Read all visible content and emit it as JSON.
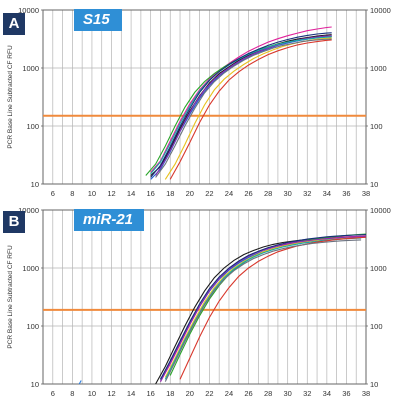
{
  "colors": {
    "panel_letter_bg": "#1f3864",
    "gene_label_bg": "#2f8fd6",
    "grid": "#b4b4b4",
    "threshold": "#f08a3c"
  },
  "chart_data": [
    {
      "type": "line",
      "panel_letter": "A",
      "gene_label": "S15",
      "ylabel": "PCR Base Line Subtracted CF RFU",
      "y_scale": "log",
      "xlim": [
        5,
        38
      ],
      "ylim": [
        10,
        10000
      ],
      "x_ticks": [
        "6",
        "8",
        "10",
        "12",
        "14",
        "16",
        "18",
        "20",
        "22",
        "24",
        "26",
        "28",
        "30",
        "32",
        "34",
        "36",
        "38"
      ],
      "y_ticks": [
        "10",
        "100",
        "1000",
        "10000"
      ],
      "grid": true,
      "threshold": 150,
      "series": [
        {
          "color": "#1a1a1a",
          "x": [
            16,
            17,
            18,
            19,
            20,
            21,
            22,
            23,
            24,
            25,
            26,
            27,
            28,
            29,
            30,
            31,
            32,
            33,
            34,
            34.5
          ],
          "y": [
            14,
            20,
            40,
            90,
            180,
            330,
            550,
            800,
            1050,
            1350,
            1650,
            1950,
            2300,
            2600,
            2900,
            3150,
            3350,
            3550,
            3700,
            3750
          ]
        },
        {
          "color": "#e0209a",
          "x": [
            16,
            17,
            18,
            19,
            20,
            21,
            22,
            23,
            24,
            25,
            26,
            27,
            28,
            29,
            30,
            31,
            32,
            33,
            34,
            34.5
          ],
          "y": [
            16,
            25,
            55,
            120,
            240,
            420,
            650,
            900,
            1200,
            1550,
            1950,
            2350,
            2800,
            3200,
            3600,
            4000,
            4400,
            4700,
            5000,
            5100
          ]
        },
        {
          "color": "#2aa52a",
          "x": [
            15.5,
            16.5,
            17.5,
            18.5,
            19.5,
            20.5,
            21.5,
            22.5,
            23.5,
            24.5,
            25.5,
            26.5,
            27.5,
            28.5,
            29.5,
            30.5,
            31.5,
            32.5,
            33.5,
            34.5
          ],
          "y": [
            14,
            22,
            45,
            100,
            210,
            380,
            580,
            800,
            1050,
            1300,
            1600,
            1900,
            2200,
            2450,
            2700,
            2900,
            3100,
            3250,
            3400,
            3500
          ]
        },
        {
          "color": "#1e5fd0",
          "x": [
            16,
            17,
            18,
            19,
            20,
            21,
            22,
            23,
            24,
            25,
            26,
            27,
            28,
            29,
            30,
            31,
            32,
            33,
            34,
            34.5
          ],
          "y": [
            12,
            18,
            36,
            80,
            160,
            300,
            500,
            730,
            980,
            1250,
            1550,
            1850,
            2150,
            2450,
            2700,
            2950,
            3150,
            3350,
            3500,
            3550
          ]
        },
        {
          "color": "#e8c21e",
          "x": [
            17.5,
            18.5,
            19.5,
            20.5,
            21.5,
            22.5,
            23.5,
            24.5,
            25.5,
            26.5,
            27.5,
            28.5,
            29.5,
            30.5,
            31.5,
            32.5,
            33.5,
            34.5
          ],
          "y": [
            12,
            22,
            48,
            110,
            230,
            420,
            640,
            880,
            1150,
            1450,
            1750,
            2050,
            2350,
            2600,
            2850,
            3050,
            3200,
            3300
          ]
        },
        {
          "color": "#8b2fb5",
          "x": [
            16.5,
            17.5,
            18.5,
            19.5,
            20.5,
            21.5,
            22.5,
            23.5,
            24.5,
            25.5,
            26.5,
            27.5,
            28.5,
            29.5,
            30.5,
            31.5,
            32.5,
            33.5,
            34.5
          ],
          "y": [
            14,
            26,
            55,
            120,
            240,
            420,
            640,
            880,
            1150,
            1450,
            1750,
            2050,
            2350,
            2650,
            2900,
            3150,
            3350,
            3500,
            3600
          ]
        },
        {
          "color": "#19a9a9",
          "x": [
            16,
            17,
            18,
            19,
            20,
            21,
            22,
            23,
            24,
            25,
            26,
            27,
            28,
            29,
            30,
            31,
            32,
            33,
            34,
            34.5
          ],
          "y": [
            15,
            24,
            50,
            110,
            220,
            400,
            620,
            870,
            1130,
            1420,
            1720,
            2000,
            2300,
            2550,
            2800,
            3000,
            3150,
            3300,
            3400,
            3450
          ]
        },
        {
          "color": "#d8372c",
          "x": [
            18,
            19,
            20,
            21,
            22,
            23,
            24,
            25,
            26,
            27,
            28,
            29,
            30,
            31,
            32,
            33,
            34,
            34.5
          ],
          "y": [
            12,
            24,
            52,
            115,
            230,
            400,
            620,
            860,
            1120,
            1400,
            1700,
            1980,
            2250,
            2500,
            2700,
            2850,
            3000,
            3050
          ]
        },
        {
          "color": "#6b7280",
          "x": [
            16.5,
            17.5,
            18.5,
            19.5,
            20.5,
            21.5,
            22.5,
            23.5,
            24.5,
            25.5,
            26.5,
            27.5,
            28.5,
            29.5,
            30.5,
            31.5,
            32.5,
            33.5,
            34.5
          ],
          "y": [
            13,
            22,
            46,
            100,
            200,
            370,
            580,
            820,
            1080,
            1360,
            1650,
            1920,
            2200,
            2450,
            2650,
            2850,
            3000,
            3100,
            3150
          ]
        },
        {
          "color": "#16307a",
          "x": [
            16,
            17,
            18,
            19,
            20,
            21,
            22,
            23,
            24,
            25,
            26,
            27,
            28,
            29,
            30,
            31,
            32,
            33,
            34,
            34.5
          ],
          "y": [
            13,
            21,
            44,
            98,
            200,
            380,
            610,
            870,
            1150,
            1450,
            1780,
            2100,
            2450,
            2800,
            3100,
            3400,
            3650,
            3850,
            4000,
            4050
          ]
        }
      ]
    },
    {
      "type": "line",
      "panel_letter": "B",
      "gene_label": "miR-21",
      "ylabel": "PCR Base Line Subtracted CF RFU",
      "y_scale": "log",
      "xlim": [
        5,
        38
      ],
      "ylim": [
        10,
        10000
      ],
      "x_ticks": [
        "6",
        "8",
        "10",
        "12",
        "14",
        "16",
        "18",
        "20",
        "22",
        "24",
        "26",
        "28",
        "30",
        "32",
        "34",
        "36",
        "38"
      ],
      "y_ticks": [
        "10",
        "100",
        "1000",
        "10000"
      ],
      "grid": true,
      "threshold": 190,
      "series": [
        {
          "color": "#1a1a1a",
          "x": [
            16.5,
            17.5,
            18.5,
            19.5,
            20.5,
            21.5,
            22.5,
            23.5,
            24.5,
            25.5,
            26.5,
            27.5,
            28.5,
            29.5,
            30.5,
            31.5,
            32.5,
            33.5,
            34.5,
            35.5,
            36.5,
            37.5
          ],
          "y": [
            10,
            20,
            45,
            100,
            210,
            400,
            680,
            1000,
            1350,
            1700,
            2000,
            2300,
            2550,
            2750,
            2900,
            3050,
            3150,
            3250,
            3350,
            3400,
            3450,
            3500
          ]
        },
        {
          "color": "#e0209a",
          "x": [
            17,
            18,
            19,
            20,
            21,
            22,
            23,
            24,
            25,
            26,
            27,
            28,
            29,
            30,
            31,
            32,
            33,
            34,
            35,
            36,
            37,
            38
          ],
          "y": [
            11,
            22,
            48,
            105,
            215,
            400,
            650,
            950,
            1280,
            1600,
            1900,
            2200,
            2450,
            2650,
            2850,
            3000,
            3150,
            3250,
            3350,
            3450,
            3500,
            3550
          ]
        },
        {
          "color": "#2aa52a",
          "x": [
            18,
            19,
            20,
            21,
            22,
            23,
            24,
            25,
            26,
            27,
            28,
            29,
            30,
            31,
            32,
            33,
            34,
            35,
            36,
            37,
            38
          ],
          "y": [
            14,
            32,
            72,
            150,
            290,
            500,
            780,
            1080,
            1400,
            1700,
            2000,
            2300,
            2550,
            2800,
            3000,
            3200,
            3350,
            3500,
            3650,
            3750,
            3850
          ]
        },
        {
          "color": "#1e5fd0",
          "x": [
            17,
            18,
            19,
            20,
            21,
            22,
            23,
            24,
            25,
            26,
            27,
            28,
            29,
            30,
            31,
            32,
            33,
            34,
            35,
            36,
            37,
            38
          ],
          "y": [
            12,
            24,
            52,
            110,
            220,
            400,
            640,
            920,
            1220,
            1520,
            1800,
            2050,
            2300,
            2500,
            2700,
            2850,
            3000,
            3100,
            3200,
            3300,
            3350,
            3400
          ]
        },
        {
          "color": "#e8c21e",
          "x": [
            17.5,
            18.5,
            19.5,
            20.5,
            21.5,
            22.5,
            23.5,
            24.5,
            25.5,
            26.5,
            27.5,
            28.5,
            29.5,
            30.5,
            31.5,
            32.5,
            33.5,
            34.5,
            35.5,
            36.5,
            37.5
          ],
          "y": [
            13,
            28,
            62,
            130,
            260,
            460,
            720,
            1000,
            1300,
            1600,
            1900,
            2150,
            2400,
            2600,
            2780,
            2950,
            3100,
            3200,
            3300,
            3400,
            3450
          ]
        },
        {
          "color": "#8b2fb5",
          "x": [
            17,
            18,
            19,
            20,
            21,
            22,
            23,
            24,
            25,
            26,
            27,
            28,
            29,
            30,
            31,
            32,
            33,
            34,
            35,
            36,
            37,
            38
          ],
          "y": [
            11,
            23,
            50,
            108,
            220,
            410,
            660,
            960,
            1280,
            1600,
            1900,
            2150,
            2400,
            2600,
            2800,
            2950,
            3100,
            3200,
            3300,
            3400,
            3450,
            3500
          ]
        },
        {
          "color": "#19a9a9",
          "x": [
            17.5,
            18.5,
            19.5,
            20.5,
            21.5,
            22.5,
            23.5,
            24.5,
            25.5,
            26.5,
            27.5,
            28.5,
            29.5,
            30.5,
            31.5,
            32.5,
            33.5,
            34.5,
            35.5,
            36.5,
            37.5
          ],
          "y": [
            12,
            26,
            58,
            120,
            240,
            430,
            680,
            960,
            1250,
            1550,
            1820,
            2080,
            2300,
            2500,
            2680,
            2820,
            2950,
            3050,
            3150,
            3220,
            3280
          ]
        },
        {
          "color": "#d8372c",
          "x": [
            19,
            20,
            21,
            22,
            23,
            24,
            25,
            26,
            27,
            28,
            29,
            30,
            31,
            32,
            33,
            34,
            35,
            36,
            37,
            38
          ],
          "y": [
            12,
            28,
            65,
            140,
            270,
            460,
            720,
            1000,
            1300,
            1600,
            1900,
            2150,
            2400,
            2600,
            2800,
            2950,
            3100,
            3200,
            3300,
            3400
          ]
        },
        {
          "color": "#6b7280",
          "x": [
            17.5,
            18.5,
            19.5,
            20.5,
            21.5,
            22.5,
            23.5,
            24.5,
            25.5,
            26.5,
            27.5,
            28.5,
            29.5,
            30.5,
            31.5,
            32.5,
            33.5,
            34.5,
            35.5,
            36.5,
            37.5
          ],
          "y": [
            11,
            24,
            54,
            115,
            230,
            410,
            640,
            900,
            1170,
            1450,
            1700,
            1950,
            2150,
            2350,
            2500,
            2650,
            2750,
            2850,
            2950,
            3000,
            3050
          ]
        },
        {
          "color": "#16307a",
          "x": [
            17,
            18,
            19,
            20,
            21,
            22,
            23,
            24,
            25,
            26,
            27,
            28,
            29,
            30,
            31,
            32,
            33,
            34,
            35,
            36,
            37,
            38
          ],
          "y": [
            12,
            25,
            55,
            118,
            240,
            440,
            700,
            1000,
            1320,
            1650,
            1950,
            2250,
            2500,
            2750,
            2950,
            3150,
            3300,
            3450,
            3550,
            3650,
            3700,
            3750
          ]
        },
        {
          "color": "#2a7de1",
          "x": [
            8.7,
            8.9
          ],
          "y": [
            10,
            11.5
          ]
        }
      ]
    }
  ]
}
